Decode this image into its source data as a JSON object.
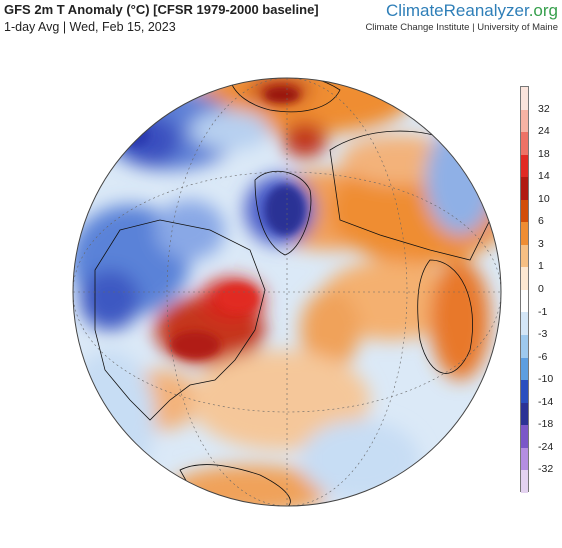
{
  "header": {
    "title": "GFS 2m T Anomaly (°C) [CFSR 1979-2000 baseline]",
    "subtitle": "1-day Avg | Wed, Feb 15, 2023"
  },
  "brand": {
    "name_part1": "ClimateReanalyzer",
    "name_part2": ".org",
    "tagline": "Climate Change Institute | University of Maine"
  },
  "legend": {
    "labels": [
      "32",
      "24",
      "18",
      "14",
      "10",
      "6",
      "3",
      "1",
      "0",
      "-1",
      "-3",
      "-6",
      "-10",
      "-14",
      "-18",
      "-24",
      "-32"
    ],
    "colors": [
      "#fbe4dc",
      "#f6b3a4",
      "#ee7266",
      "#e12a24",
      "#b11a12",
      "#d24d08",
      "#ef8d33",
      "#f6bf83",
      "#fde8d2",
      "#ffffff",
      "#d4e6f7",
      "#9ec9ee",
      "#5d9ee0",
      "#2a4fbf",
      "#2b3295",
      "#7b57c9",
      "#b48ee1",
      "#e4d3f0"
    ]
  },
  "map": {
    "ocean_base_color": "#dbe9f7"
  }
}
